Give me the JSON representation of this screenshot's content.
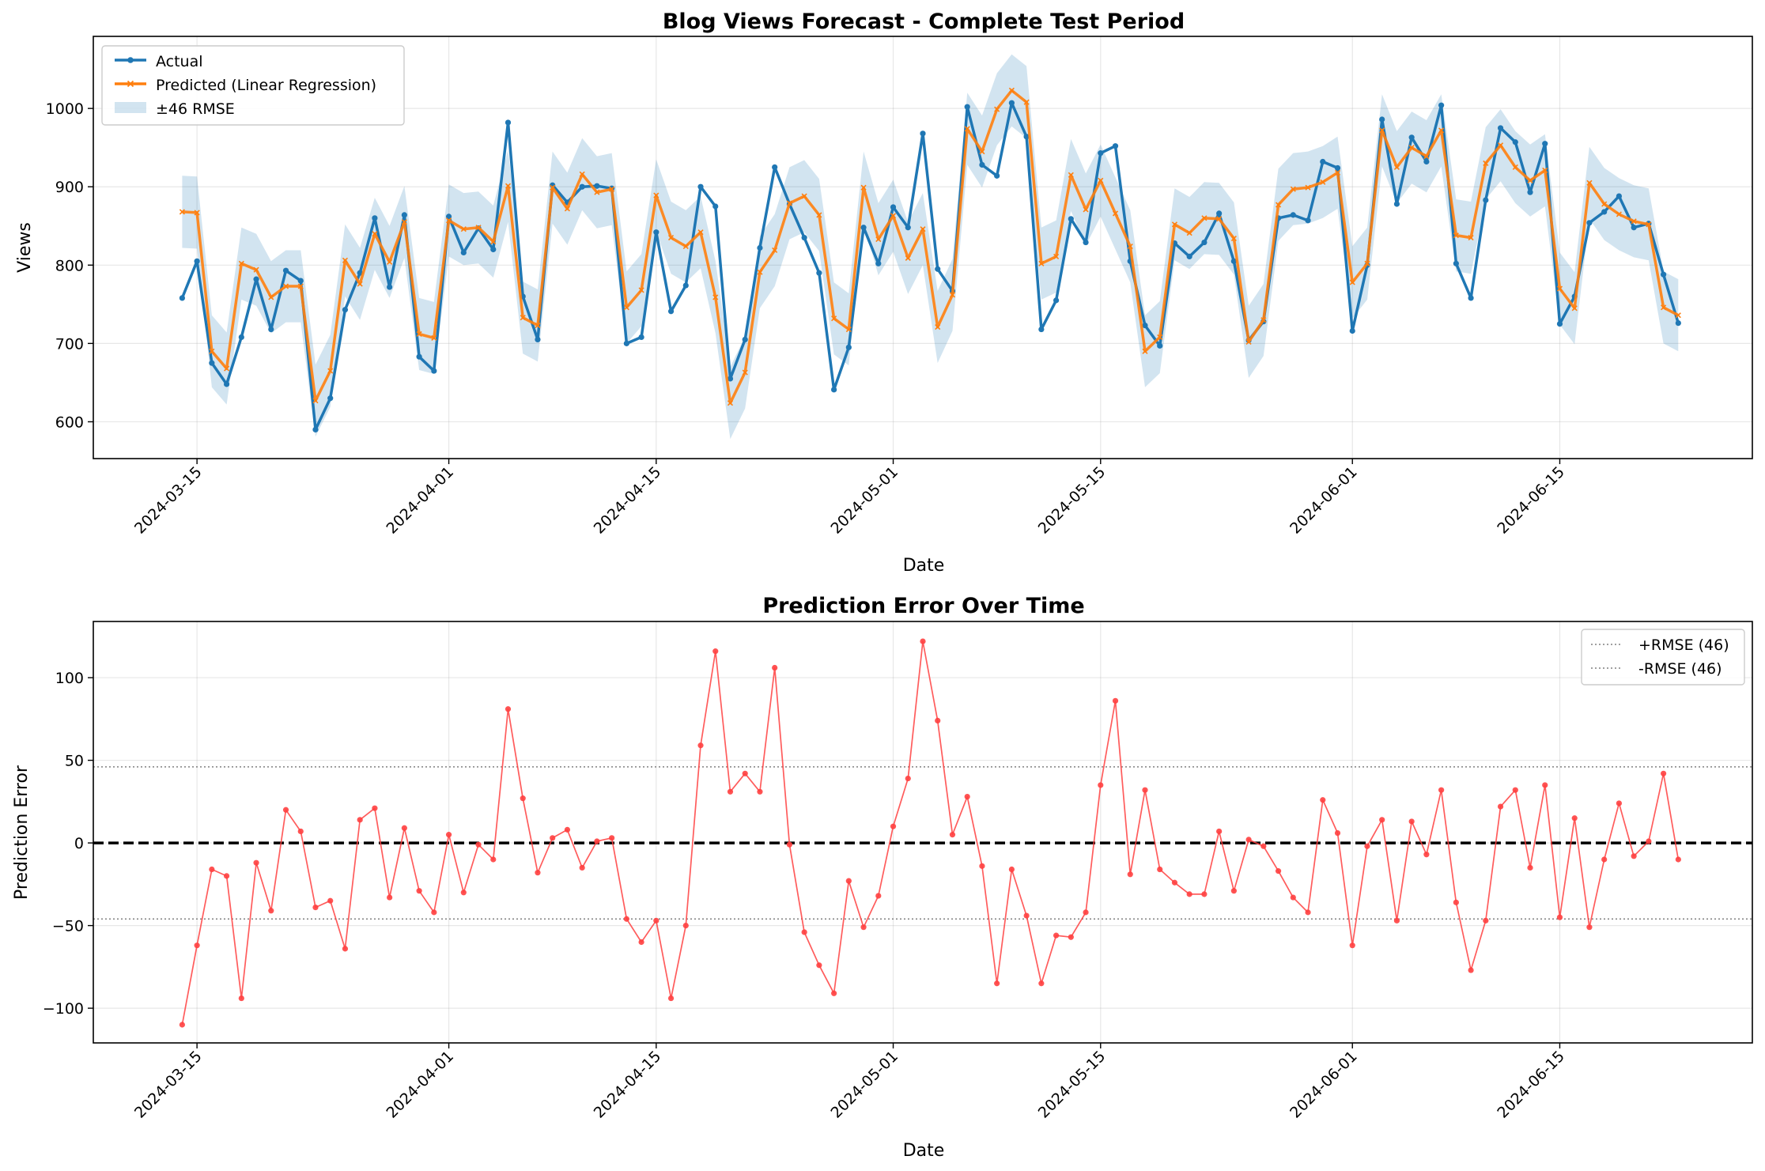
{
  "chart_data": [
    {
      "type": "line",
      "title": "Blog Views Forecast - Complete Test Period",
      "xlabel": "Date",
      "ylabel": "Views",
      "start_date": "2024-03-14",
      "x_range": [
        "2024-03-08",
        "2024-06-28"
      ],
      "ylim": [
        553,
        1092
      ],
      "yticks": [
        600,
        700,
        800,
        900,
        1000
      ],
      "xticks": [
        "2024-03-15",
        "2024-04-01",
        "2024-04-15",
        "2024-05-01",
        "2024-05-15",
        "2024-06-01",
        "2024-06-15"
      ],
      "grid": true,
      "legend_position": "upper left",
      "band_halfwidth": 46,
      "series": [
        {
          "name": "Actual",
          "color": "#1f77b4",
          "marker": "dot",
          "values": [
            758,
            805,
            675,
            648,
            708,
            782,
            718,
            793,
            780,
            590,
            630,
            743,
            790,
            860,
            772,
            864,
            683,
            665,
            862,
            816,
            847,
            820,
            982,
            760,
            705,
            902,
            880,
            900,
            901,
            898,
            700,
            708,
            842,
            741,
            774,
            900,
            875,
            655,
            705,
            822,
            925,
            878,
            835,
            790,
            641,
            695,
            848,
            802,
            874,
            848,
            968,
            795,
            767,
            1002,
            928,
            914,
            1007,
            964,
            718,
            755,
            859,
            829,
            943,
            952,
            805,
            723,
            697,
            828,
            811,
            829,
            866,
            805,
            704,
            728,
            860,
            864,
            857,
            932,
            924,
            716,
            800,
            986,
            878,
            963,
            932,
            1004,
            802,
            758,
            883,
            975,
            957,
            893,
            955,
            725,
            760,
            854,
            868,
            888,
            848,
            853,
            788,
            726
          ]
        },
        {
          "name": "Predicted (Linear Regression)",
          "color": "#ff7f0e",
          "marker": "x",
          "values": [
            868,
            867,
            690,
            668,
            802,
            794,
            759,
            773,
            773,
            627,
            665,
            806,
            776,
            840,
            804,
            855,
            712,
            707,
            857,
            846,
            848,
            830,
            901,
            733,
            723,
            899,
            872,
            916,
            893,
            897,
            746,
            768,
            889,
            835,
            824,
            842,
            759,
            624,
            663,
            791,
            819,
            879,
            888,
            864,
            732,
            718,
            899,
            833,
            863,
            809,
            846,
            721,
            762,
            974,
            945,
            999,
            1023,
            1008,
            802,
            811,
            915,
            871,
            908,
            866,
            824,
            690,
            708,
            852,
            841,
            860,
            859,
            834,
            702,
            730,
            877,
            897,
            899,
            906,
            918,
            778,
            802,
            972,
            925,
            950,
            939,
            972,
            838,
            835,
            930,
            953,
            925,
            908,
            921,
            770,
            745,
            905,
            878,
            865,
            856,
            852,
            746,
            736
          ]
        },
        {
          "name": "±46 RMSE",
          "type": "band",
          "color": "#aecde6"
        }
      ]
    },
    {
      "type": "line",
      "title": "Prediction Error Over Time",
      "xlabel": "Date",
      "ylabel": "Prediction Error",
      "start_date": "2024-03-14",
      "x_range": [
        "2024-03-08",
        "2024-06-28"
      ],
      "ylim": [
        -121,
        134
      ],
      "yticks": [
        -100,
        -50,
        0,
        50,
        100
      ],
      "xticks": [
        "2024-03-15",
        "2024-04-01",
        "2024-04-15",
        "2024-05-01",
        "2024-05-15",
        "2024-06-01",
        "2024-06-15"
      ],
      "grid": true,
      "legend_position": "upper right",
      "zero_line": {
        "value": 0,
        "color": "#000000",
        "style": "dashed"
      },
      "reference_lines": [
        {
          "name": "+RMSE (46)",
          "value": 46,
          "color": "#808080",
          "style": "dotted"
        },
        {
          "name": "-RMSE (46)",
          "value": -46,
          "color": "#808080",
          "style": "dotted"
        }
      ],
      "series": [
        {
          "name": "Prediction Error",
          "color": "#ff4040",
          "marker": "dot",
          "values": [
            -110,
            -62,
            -16,
            -20,
            -94,
            -12,
            -41,
            20,
            7,
            -39,
            -35,
            -64,
            14,
            21,
            -33,
            9,
            -29,
            -42,
            5,
            -30,
            -1,
            -10,
            81,
            27,
            -18,
            3,
            8,
            -15,
            1,
            3,
            -46,
            -60,
            -47,
            -94,
            -50,
            59,
            116,
            31,
            42,
            31,
            106,
            -1,
            -54,
            -74,
            -91,
            -23,
            -51,
            -32,
            10,
            39,
            122,
            74,
            5,
            28,
            -14,
            -85,
            -16,
            -44,
            -85,
            -56,
            -57,
            -42,
            35,
            86,
            -19,
            32,
            -16,
            -24,
            -31,
            -31,
            7,
            -29,
            2,
            -2,
            -17,
            -33,
            -42,
            26,
            6,
            -62,
            -2,
            14,
            -47,
            13,
            -7,
            32,
            -36,
            -77,
            -47,
            22,
            32,
            -15,
            35,
            -45,
            15,
            -51,
            -10,
            24,
            -8,
            1,
            42,
            -10
          ]
        }
      ]
    }
  ]
}
